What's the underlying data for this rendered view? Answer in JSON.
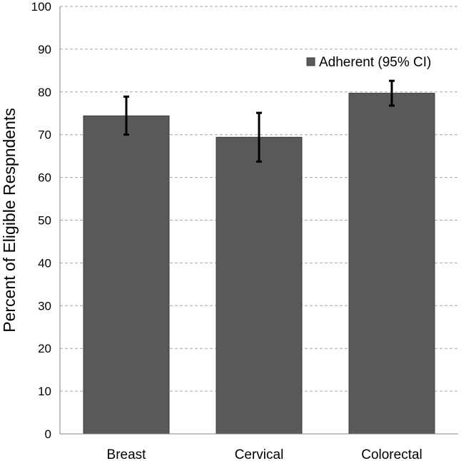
{
  "chart_data": {
    "type": "bar",
    "title": "",
    "xlabel": "",
    "ylabel": "Percent of Eligible Respndents",
    "ylim": [
      0,
      100
    ],
    "yticks": [
      0,
      10,
      20,
      30,
      40,
      50,
      60,
      70,
      80,
      90,
      100
    ],
    "grid": true,
    "categories": [
      "Breast",
      "Cervical",
      "Colorectal"
    ],
    "series": [
      {
        "name": "Adherent (95% CI)",
        "values": [
          74.4,
          69.4,
          79.7
        ],
        "ci_low": [
          70.0,
          63.7,
          76.8
        ],
        "ci_high": [
          78.9,
          75.1,
          82.6
        ]
      }
    ],
    "legend_position": "top-right",
    "colors": {
      "bar": "#595959",
      "bar_edge": "#3a3a3a",
      "grid": "#a6a6a6",
      "axis": "#808080",
      "error": "#000000"
    }
  }
}
